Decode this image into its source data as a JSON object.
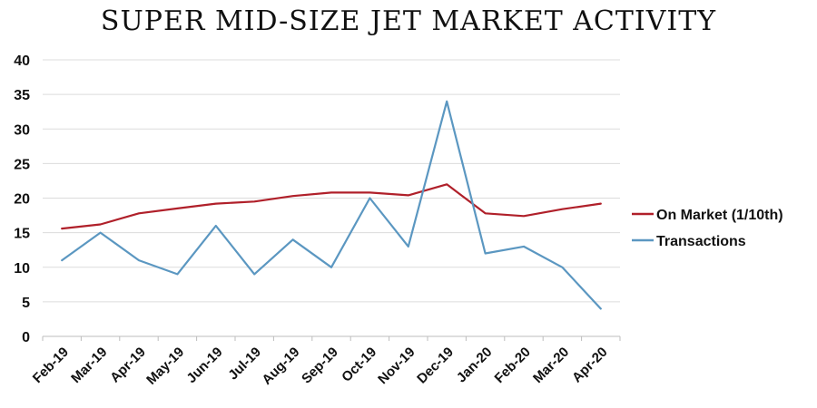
{
  "chart_data": {
    "type": "line",
    "title": "SUPER MID-SIZE JET MARKET ACTIVITY",
    "categories": [
      "Feb-19",
      "Mar-19",
      "Apr-19",
      "May-19",
      "Jun-19",
      "Jul-19",
      "Aug-19",
      "Sep-19",
      "Oct-19",
      "Nov-19",
      "Dec-19",
      "Jan-20",
      "Feb-20",
      "Mar-20",
      "Apr-20"
    ],
    "series": [
      {
        "name": "On Market (1/10th)",
        "color": "#b0202a",
        "values": [
          15.6,
          16.2,
          17.8,
          18.5,
          19.2,
          19.5,
          20.3,
          20.8,
          20.8,
          20.4,
          22.0,
          17.8,
          17.4,
          18.4,
          19.2
        ]
      },
      {
        "name": "Transactions",
        "color": "#5b97c1",
        "values": [
          11,
          15,
          11,
          9,
          16,
          9,
          14,
          10,
          20,
          13,
          34,
          12,
          13,
          10,
          4
        ]
      }
    ],
    "y_ticks": [
      "0",
      "5",
      "10",
      "15",
      "20",
      "25",
      "30",
      "35",
      "40"
    ],
    "ylim": [
      0,
      40
    ],
    "grid": true,
    "legend_position": "right"
  }
}
